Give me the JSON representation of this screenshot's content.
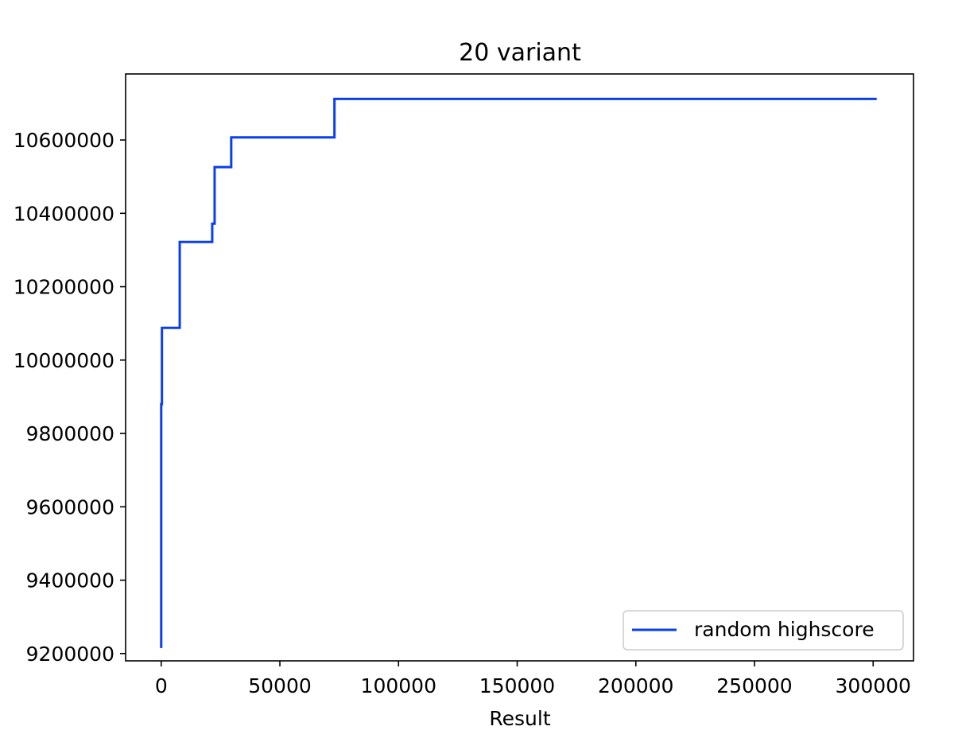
{
  "chart_data": {
    "type": "line",
    "title": "20 variant",
    "xlabel": "Result",
    "ylabel": "",
    "xlim": [
      -15000,
      317000
    ],
    "ylim": [
      9180000,
      10780000
    ],
    "xticks": [
      0,
      50000,
      100000,
      150000,
      200000,
      250000,
      300000
    ],
    "xtick_labels": [
      "0",
      "50000",
      "100000",
      "150000",
      "200000",
      "250000",
      "300000"
    ],
    "yticks": [
      9200000,
      9400000,
      9600000,
      9800000,
      10000000,
      10200000,
      10400000,
      10600000
    ],
    "ytick_labels": [
      "9200000",
      "9400000",
      "9600000",
      "9800000",
      "10000000",
      "10200000",
      "10400000",
      "10600000"
    ],
    "grid": false,
    "legend_position": "lower-right",
    "series": [
      {
        "name": "random highscore",
        "color": "#0a3ff0",
        "step": true,
        "points": [
          [
            0,
            9215000
          ],
          [
            0,
            9880000
          ],
          [
            300,
            9880000
          ],
          [
            300,
            10088000
          ],
          [
            7800,
            10088000
          ],
          [
            7800,
            10322000
          ],
          [
            21500,
            10322000
          ],
          [
            21500,
            10372000
          ],
          [
            22500,
            10372000
          ],
          [
            22500,
            10526000
          ],
          [
            29500,
            10526000
          ],
          [
            29500,
            10607000
          ],
          [
            73000,
            10607000
          ],
          [
            73000,
            10712000
          ],
          [
            301500,
            10712000
          ]
        ]
      }
    ]
  }
}
